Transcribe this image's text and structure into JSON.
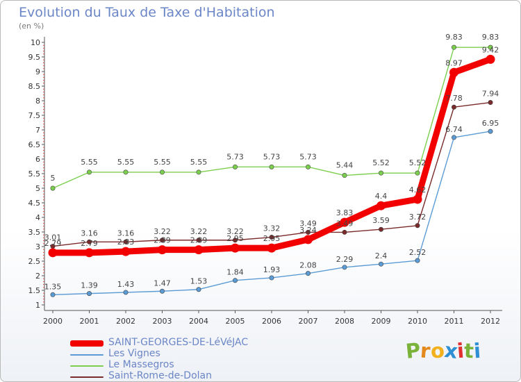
{
  "title": "Evolution du Taux de Taxe d'Habitation",
  "subtitle": "(en %)",
  "logo": {
    "letters": [
      "P",
      "r",
      "o",
      "x",
      "i",
      "t",
      "i"
    ],
    "colors": [
      "#7bb33a",
      "#e48a1c",
      "#f2b11c",
      "#2e8fd4",
      "#e03030",
      "#7bb33a",
      "#2e8fd4"
    ]
  },
  "chart_data": {
    "type": "line",
    "x": [
      "2000",
      "2001",
      "2002",
      "2003",
      "2004",
      "2005",
      "2006",
      "2007",
      "2008",
      "2009",
      "2010",
      "2011",
      "2012"
    ],
    "y_ticks": [
      "1",
      "1.5",
      "2",
      "2.5",
      "3",
      "3.5",
      "4",
      "4.5",
      "5",
      "5.5",
      "6",
      "6.5",
      "7",
      "7.5",
      "8",
      "8.5",
      "9",
      "9.5",
      "10"
    ],
    "ylim": [
      1,
      10
    ],
    "grid": false,
    "legend_position": "bottom-left",
    "series": [
      {
        "name": "SAINT-GEORGES-DE-LéVéJAC",
        "color": "#f20000",
        "values": [
          2.79,
          2.79,
          2.83,
          2.89,
          2.89,
          2.95,
          2.95,
          3.24,
          3.83,
          4.4,
          4.62,
          8.97,
          9.42
        ],
        "labels": [
          "2.79",
          "2.79",
          "2.83",
          "2.89",
          "2.89",
          "2.95",
          "2.95",
          "3.24",
          "3.83",
          "4.4",
          "4.62",
          "8.97",
          "9.42"
        ]
      },
      {
        "name": "Les Vignes",
        "color": "#5b9bd5",
        "values": [
          1.35,
          1.39,
          1.43,
          1.47,
          1.53,
          1.84,
          1.93,
          2.08,
          2.29,
          2.4,
          2.52,
          6.74,
          6.95
        ],
        "labels": [
          "1.35",
          "1.39",
          "1.43",
          "1.47",
          "1.53",
          "1.84",
          "1.93",
          "2.08",
          "2.29",
          "2.4",
          "2.52",
          "6.74",
          "6.95"
        ]
      },
      {
        "name": "Le Massegros",
        "color": "#7ccf4e",
        "values": [
          5,
          5.55,
          5.55,
          5.55,
          5.55,
          5.73,
          5.73,
          5.73,
          5.44,
          5.52,
          5.52,
          9.83,
          9.83
        ],
        "labels": [
          "5",
          "5.55",
          "5.55",
          "5.55",
          "5.55",
          "5.73",
          "5.73",
          "5.73",
          "5.44",
          "5.52",
          "5.52",
          "9.83",
          "9.83"
        ]
      },
      {
        "name": "Saint-Rome-de-Dolan",
        "color": "#7a2a2a",
        "values": [
          3.01,
          3.16,
          3.16,
          3.22,
          3.22,
          3.22,
          3.32,
          3.49,
          3.49,
          3.59,
          3.72,
          7.78,
          7.94
        ],
        "labels": [
          "3.01",
          "3.16",
          "3.16",
          "3.22",
          "3.22",
          "3.22",
          "3.32",
          "3.49",
          "3.49",
          "3.59",
          "3.72",
          "7.78",
          "7.94"
        ]
      }
    ]
  }
}
